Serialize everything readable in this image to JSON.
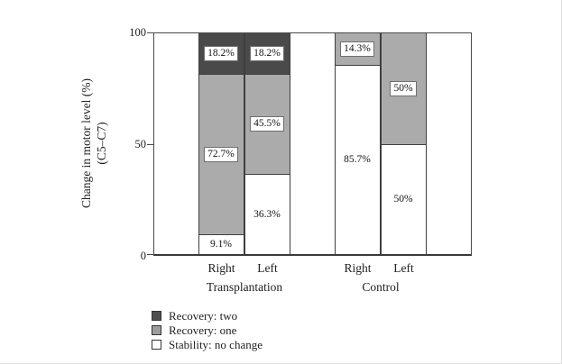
{
  "figure": {
    "background": "#ffffff",
    "frame_border_color": "#dcdcdc"
  },
  "chart_data": {
    "type": "bar",
    "subtype": "stacked-percentage",
    "title": "",
    "ylabel_line1": "Change in motor level (%)",
    "ylabel_line2": "(C5–C7)",
    "ylim": [
      0,
      100
    ],
    "yticks": [
      "0",
      "50",
      "100"
    ],
    "ytick_values": [
      0,
      50,
      100
    ],
    "grid": "off",
    "legend_position": "bottom-left",
    "series_colors": {
      "Recovery: two": "#4a4a4a",
      "Recovery: one": "#ababab",
      "Stability: no change": "#ffffff"
    },
    "groups": [
      {
        "label": "Transplantation",
        "bars": [
          {
            "label": "Right",
            "segments": [
              {
                "series": "Stability: no change",
                "value": 9.1,
                "text": "9.1%",
                "boxed": false
              },
              {
                "series": "Recovery: one",
                "value": 72.7,
                "text": "72.7%",
                "boxed": true
              },
              {
                "series": "Recovery: two",
                "value": 18.2,
                "text": "18.2%",
                "boxed": true
              }
            ]
          },
          {
            "label": "Left",
            "segments": [
              {
                "series": "Stability: no change",
                "value": 36.3,
                "text": "36.3%",
                "boxed": false
              },
              {
                "series": "Recovery: one",
                "value": 45.5,
                "text": "45.5%",
                "boxed": true
              },
              {
                "series": "Recovery: two",
                "value": 18.2,
                "text": "18.2%",
                "boxed": true
              }
            ]
          }
        ]
      },
      {
        "label": "Control",
        "bars": [
          {
            "label": "Right",
            "segments": [
              {
                "series": "Stability: no change",
                "value": 85.7,
                "text": "85.7%",
                "boxed": false
              },
              {
                "series": "Recovery: one",
                "value": 14.3,
                "text": "14.3%",
                "boxed": true
              }
            ]
          },
          {
            "label": "Left",
            "segments": [
              {
                "series": "Stability: no change",
                "value": 50,
                "text": "50%",
                "boxed": false
              },
              {
                "series": "Recovery: one",
                "value": 50,
                "text": "50%",
                "boxed": true
              }
            ]
          }
        ]
      }
    ],
    "legend": [
      {
        "label": "Recovery: two",
        "color": "#4f4f4f"
      },
      {
        "label": "Recovery: one",
        "color": "#9c9c9c"
      },
      {
        "label": "Stability: no change",
        "color": "#ffffff"
      }
    ]
  }
}
